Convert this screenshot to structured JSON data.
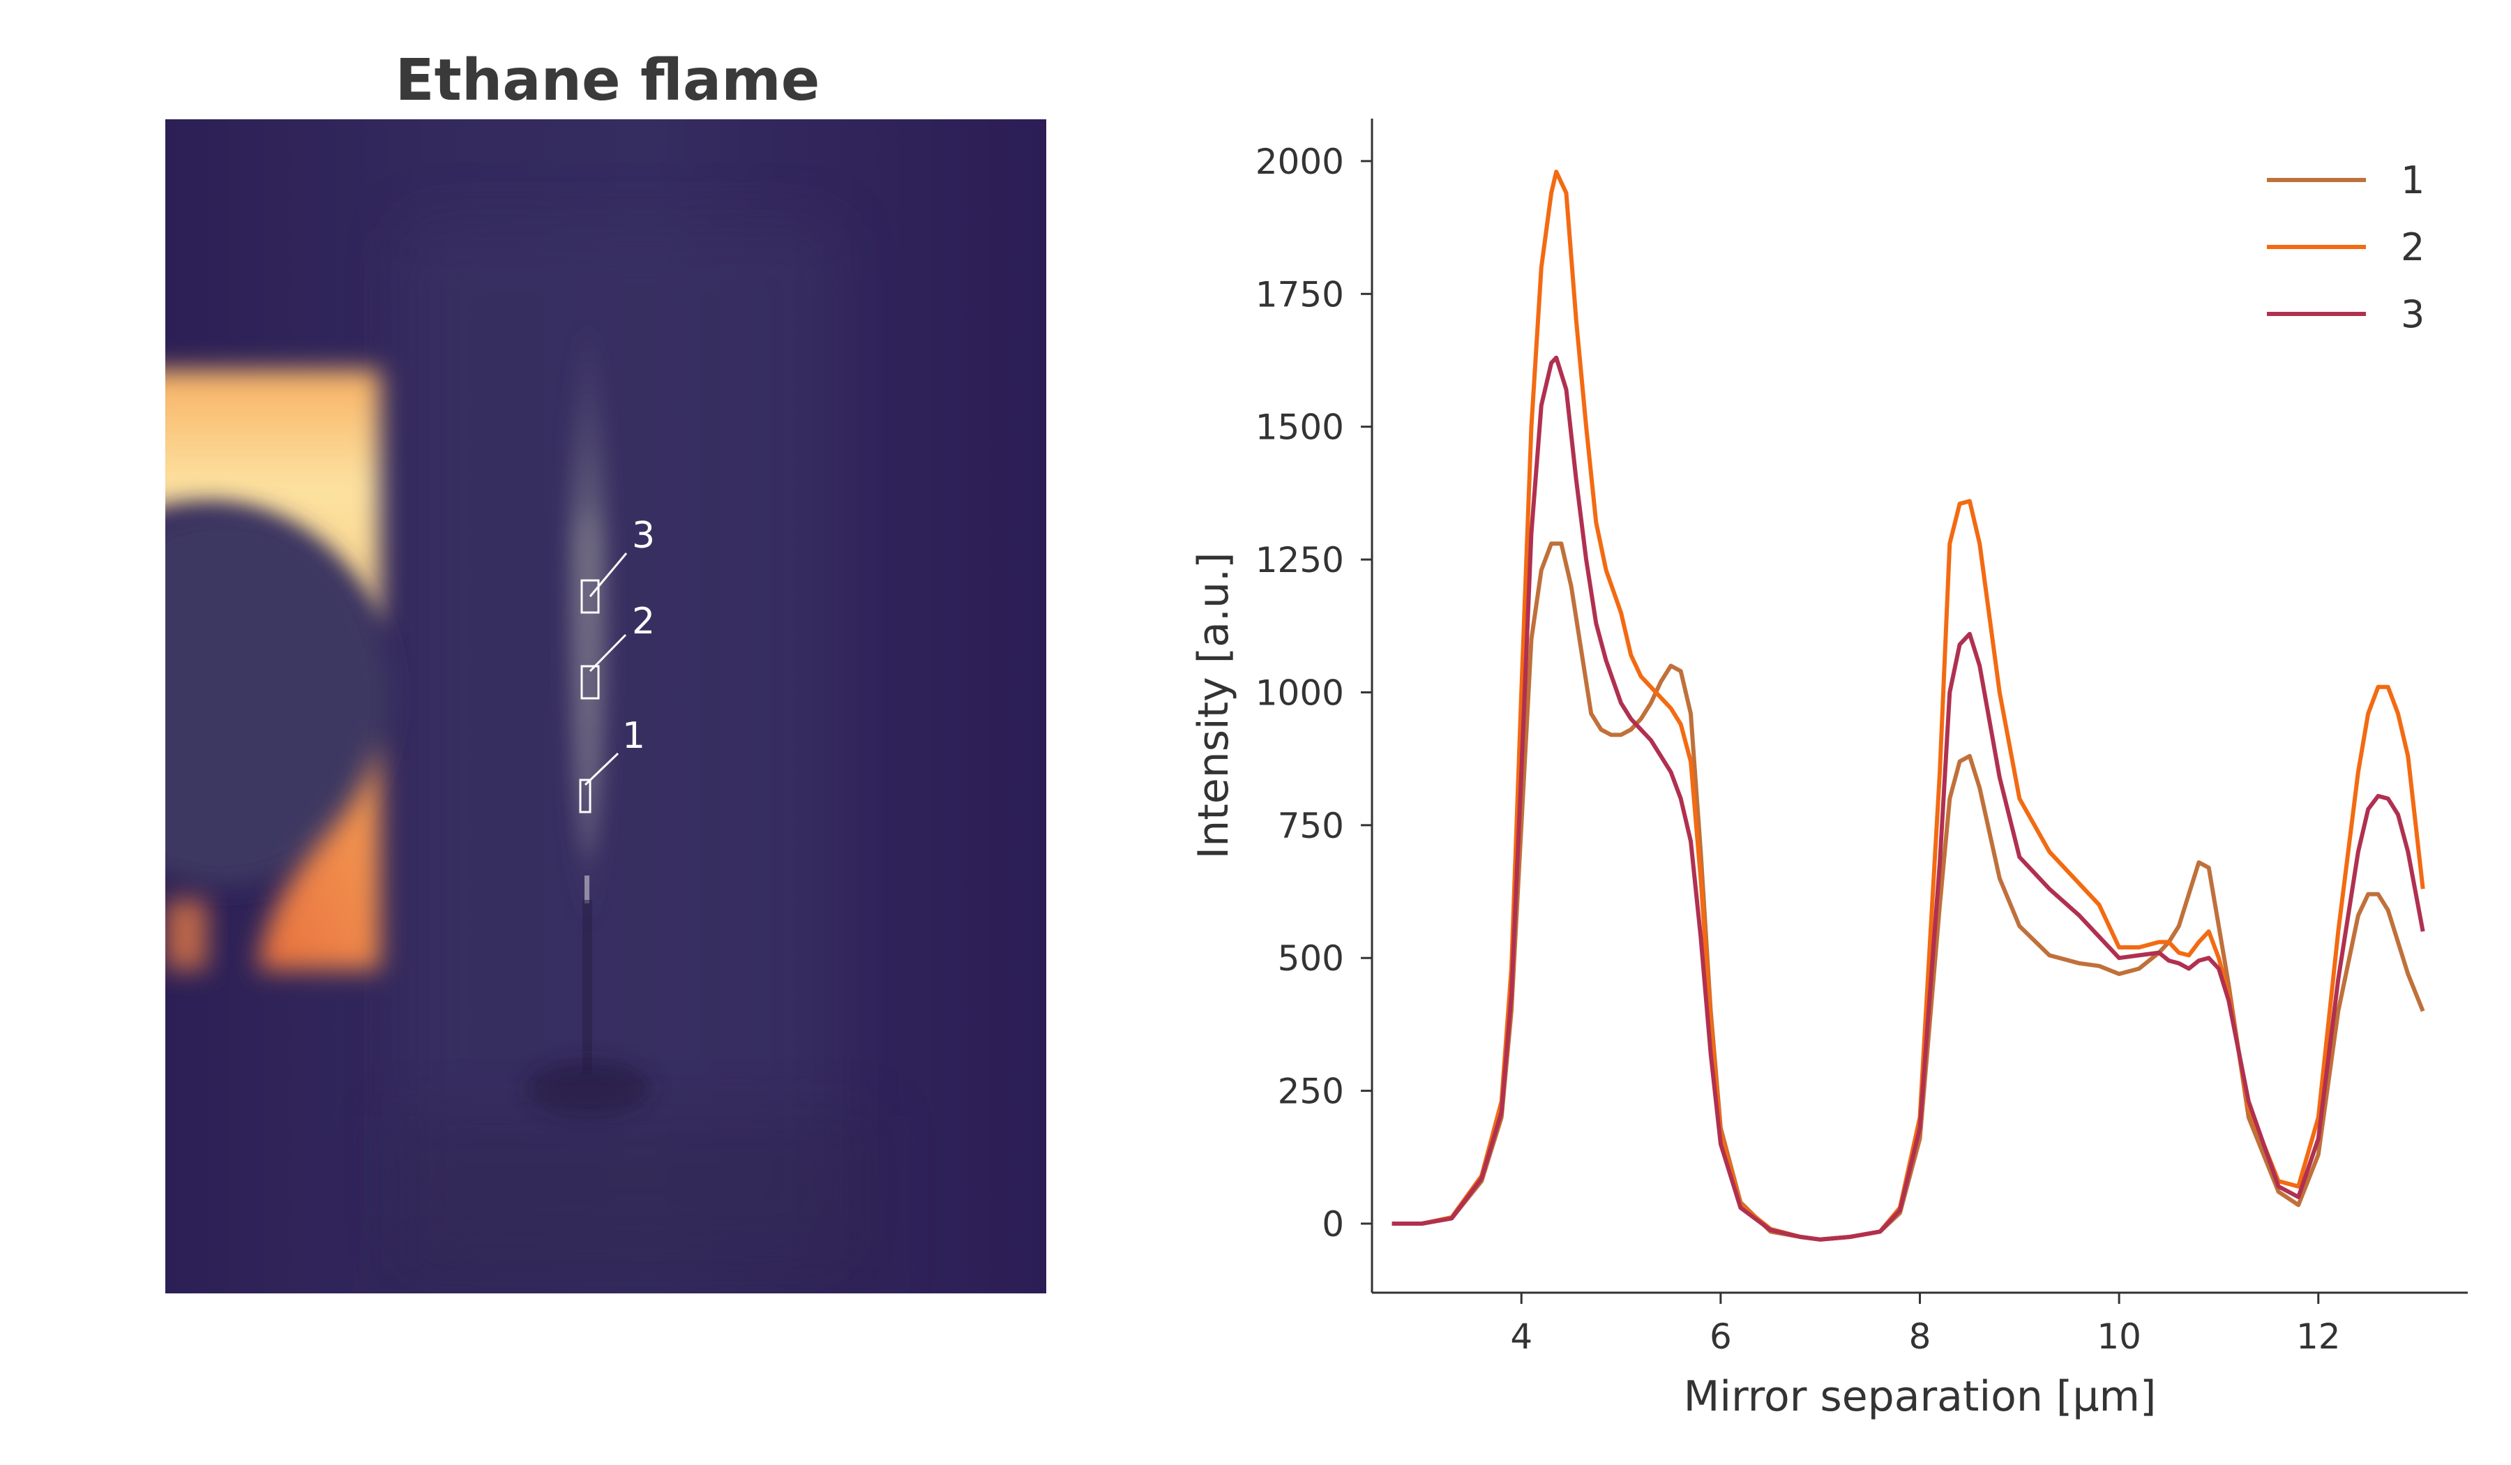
{
  "image_panel": {
    "title": "Ethane flame",
    "regions": [
      {
        "label": "1"
      },
      {
        "label": "2"
      },
      {
        "label": "3"
      }
    ]
  },
  "chart_data": {
    "type": "line",
    "xlabel": "Mirror separation [µm]",
    "ylabel": "Intensity [a.u.]",
    "xlim": [
      2.5,
      13.5
    ],
    "ylim": [
      -130,
      2080
    ],
    "xticks": [
      4,
      6,
      8,
      10,
      12
    ],
    "yticks": [
      0,
      250,
      500,
      750,
      1000,
      1250,
      1500,
      1750,
      2000
    ],
    "grid": false,
    "legend_position": "top-right",
    "series": [
      {
        "name": "1",
        "color": "#c0703a",
        "x": [
          2.7,
          3.0,
          3.3,
          3.6,
          3.8,
          3.9,
          4.0,
          4.1,
          4.2,
          4.3,
          4.4,
          4.5,
          4.6,
          4.7,
          4.8,
          4.9,
          5.0,
          5.1,
          5.2,
          5.3,
          5.4,
          5.5,
          5.6,
          5.7,
          5.8,
          5.9,
          6.0,
          6.2,
          6.5,
          6.8,
          7.0,
          7.3,
          7.6,
          7.8,
          8.0,
          8.2,
          8.3,
          8.4,
          8.5,
          8.6,
          8.8,
          9.0,
          9.3,
          9.6,
          9.8,
          10.0,
          10.2,
          10.4,
          10.5,
          10.6,
          10.7,
          10.8,
          10.9,
          11.0,
          11.1,
          11.3,
          11.6,
          11.8,
          12.0,
          12.2,
          12.4,
          12.5,
          12.6,
          12.7,
          12.8,
          12.9,
          13.05
        ],
        "y": [
          0,
          0,
          10,
          80,
          200,
          400,
          750,
          1100,
          1230,
          1280,
          1280,
          1200,
          1080,
          960,
          930,
          920,
          920,
          930,
          950,
          980,
          1020,
          1050,
          1040,
          960,
          700,
          400,
          180,
          40,
          -15,
          -25,
          -30,
          -25,
          -15,
          20,
          160,
          600,
          800,
          870,
          880,
          820,
          650,
          560,
          505,
          490,
          485,
          470,
          480,
          510,
          530,
          560,
          620,
          680,
          670,
          560,
          450,
          200,
          60,
          35,
          130,
          400,
          580,
          620,
          620,
          590,
          530,
          470,
          400
        ]
      },
      {
        "name": "2",
        "color": "#f36a12",
        "x": [
          2.7,
          3.0,
          3.3,
          3.6,
          3.8,
          3.9,
          4.0,
          4.1,
          4.2,
          4.3,
          4.35,
          4.45,
          4.55,
          4.65,
          4.75,
          4.85,
          5.0,
          5.1,
          5.2,
          5.3,
          5.4,
          5.5,
          5.6,
          5.7,
          5.8,
          5.9,
          6.0,
          6.2,
          6.5,
          6.8,
          7.0,
          7.3,
          7.6,
          7.8,
          8.0,
          8.2,
          8.3,
          8.4,
          8.5,
          8.6,
          8.8,
          9.0,
          9.3,
          9.6,
          9.8,
          10.0,
          10.2,
          10.4,
          10.5,
          10.6,
          10.7,
          10.8,
          10.9,
          11.0,
          11.1,
          11.3,
          11.6,
          11.8,
          12.0,
          12.2,
          12.4,
          12.5,
          12.6,
          12.7,
          12.8,
          12.9,
          13.05
        ],
        "y": [
          0,
          0,
          12,
          90,
          230,
          480,
          1000,
          1500,
          1800,
          1940,
          1980,
          1940,
          1700,
          1500,
          1320,
          1230,
          1150,
          1070,
          1030,
          1010,
          990,
          970,
          940,
          870,
          650,
          380,
          170,
          35,
          -10,
          -25,
          -30,
          -25,
          -15,
          30,
          200,
          850,
          1280,
          1355,
          1360,
          1280,
          1000,
          800,
          700,
          640,
          600,
          520,
          520,
          530,
          530,
          510,
          505,
          530,
          550,
          500,
          430,
          220,
          80,
          70,
          200,
          550,
          850,
          960,
          1010,
          1010,
          960,
          880,
          630
        ]
      },
      {
        "name": "3",
        "color": "#b03050",
        "x": [
          2.7,
          3.0,
          3.3,
          3.6,
          3.8,
          3.9,
          4.0,
          4.1,
          4.2,
          4.3,
          4.35,
          4.45,
          4.55,
          4.65,
          4.75,
          4.85,
          5.0,
          5.1,
          5.2,
          5.3,
          5.4,
          5.5,
          5.6,
          5.7,
          5.8,
          5.9,
          6.0,
          6.2,
          6.5,
          6.8,
          7.0,
          7.3,
          7.6,
          7.8,
          8.0,
          8.2,
          8.3,
          8.4,
          8.5,
          8.6,
          8.8,
          9.0,
          9.3,
          9.6,
          9.8,
          10.0,
          10.2,
          10.4,
          10.5,
          10.6,
          10.7,
          10.8,
          10.9,
          11.0,
          11.1,
          11.3,
          11.6,
          11.8,
          12.0,
          12.2,
          12.4,
          12.5,
          12.6,
          12.7,
          12.8,
          12.9,
          13.05
        ],
        "y": [
          0,
          0,
          10,
          85,
          210,
          430,
          850,
          1300,
          1540,
          1620,
          1630,
          1570,
          1400,
          1250,
          1130,
          1060,
          980,
          950,
          930,
          910,
          880,
          850,
          800,
          720,
          540,
          320,
          150,
          30,
          -12,
          -25,
          -30,
          -25,
          -15,
          25,
          180,
          680,
          1000,
          1090,
          1110,
          1050,
          840,
          690,
          630,
          580,
          540,
          500,
          505,
          510,
          495,
          490,
          480,
          495,
          500,
          480,
          420,
          230,
          70,
          50,
          160,
          460,
          700,
          780,
          805,
          800,
          770,
          700,
          550
        ]
      }
    ]
  }
}
